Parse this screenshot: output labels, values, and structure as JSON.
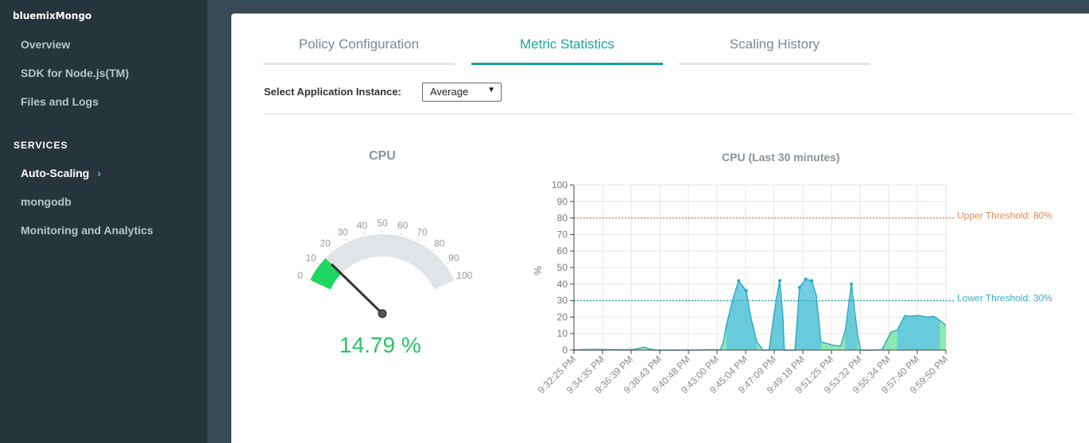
{
  "sidebar": {
    "app_name": "bluemixMongo",
    "items": [
      {
        "label": "Overview"
      },
      {
        "label": "SDK for Node.js(TM)"
      },
      {
        "label": "Files and Logs"
      }
    ],
    "services_heading": "SERVICES",
    "services": [
      {
        "label": "Auto-Scaling",
        "active": true
      },
      {
        "label": "mongodb"
      },
      {
        "label": "Monitoring and Analytics"
      }
    ],
    "active_chevron": "›"
  },
  "tabs": [
    {
      "label": "Policy Configuration",
      "active": false
    },
    {
      "label": "Metric Statistics",
      "active": true
    },
    {
      "label": "Scaling History",
      "active": false
    }
  ],
  "instance": {
    "label": "Select Application Instance:",
    "selected": "Average",
    "arrow": "▼"
  },
  "gauge": {
    "title": "CPU",
    "value": 14.79,
    "value_text": "14.79 %",
    "ticks": [
      "0",
      "10",
      "20",
      "30",
      "40",
      "50",
      "60",
      "70",
      "80",
      "90",
      "100"
    ],
    "min": 0,
    "max": 100,
    "fill_color": "#1ed760",
    "track_color": "#e0e4e8"
  },
  "chart_data": {
    "type": "area",
    "title": "CPU (Last 30 minutes)",
    "ylabel": "%",
    "ylim": [
      0,
      100
    ],
    "yticks": [
      0,
      10,
      20,
      30,
      40,
      50,
      60,
      70,
      80,
      90,
      100
    ],
    "xticks": [
      "9:32:25 PM",
      "9:34:35 PM",
      "9:36:39 PM",
      "9:38:43 PM",
      "9:40:48 PM",
      "9:43:00 PM",
      "9:45:04 PM",
      "9:47:09 PM",
      "9:49:18 PM",
      "9:51:25 PM",
      "9:53:32 PM",
      "9:55:34 PM",
      "9:57:40 PM",
      "9:59:50 PM"
    ],
    "grid": true,
    "thresholds": [
      {
        "label": "Upper Threshold: 80%",
        "value": 80,
        "color": "#e08a5a"
      },
      {
        "label": "Lower Threshold: 30%",
        "value": 30,
        "color": "#3aa9c9"
      }
    ],
    "series": [
      {
        "values": [
          [
            0,
            0
          ],
          [
            0.3,
            0.3
          ],
          [
            0.6,
            0.4
          ],
          [
            1.2,
            0.3
          ],
          [
            1.7,
            0.2
          ],
          [
            2.0,
            0.5
          ],
          [
            2.3,
            1.8
          ],
          [
            2.5,
            0.6
          ],
          [
            2.7,
            0
          ],
          [
            3.2,
            0
          ],
          [
            4.0,
            0
          ],
          [
            4.5,
            0.2
          ],
          [
            4.8,
            0.1
          ],
          [
            4.9,
            5
          ],
          [
            5.0,
            15
          ],
          [
            5.2,
            30
          ],
          [
            5.4,
            42
          ],
          [
            5.65,
            36
          ],
          [
            5.8,
            20
          ],
          [
            6.0,
            5
          ],
          [
            6.2,
            0
          ],
          [
            6.4,
            0
          ],
          [
            6.55,
            20
          ],
          [
            6.65,
            32
          ],
          [
            6.75,
            42
          ],
          [
            6.85,
            22
          ],
          [
            6.9,
            0
          ],
          [
            7.25,
            0
          ],
          [
            7.4,
            38
          ],
          [
            7.6,
            43
          ],
          [
            7.8,
            42
          ],
          [
            7.95,
            33
          ],
          [
            8.1,
            5
          ],
          [
            8.5,
            3
          ],
          [
            8.75,
            2.5
          ],
          [
            8.9,
            12
          ],
          [
            9.1,
            40
          ],
          [
            9.3,
            10
          ],
          [
            9.4,
            0
          ],
          [
            9.8,
            0
          ],
          [
            10.1,
            0.2
          ],
          [
            10.4,
            11
          ],
          [
            10.6,
            12
          ],
          [
            10.85,
            21
          ],
          [
            11.0,
            20.5
          ],
          [
            11.3,
            21
          ],
          [
            11.6,
            20
          ],
          [
            11.8,
            20.5
          ],
          [
            12.0,
            18
          ],
          [
            12.2,
            15
          ]
        ]
      }
    ]
  }
}
